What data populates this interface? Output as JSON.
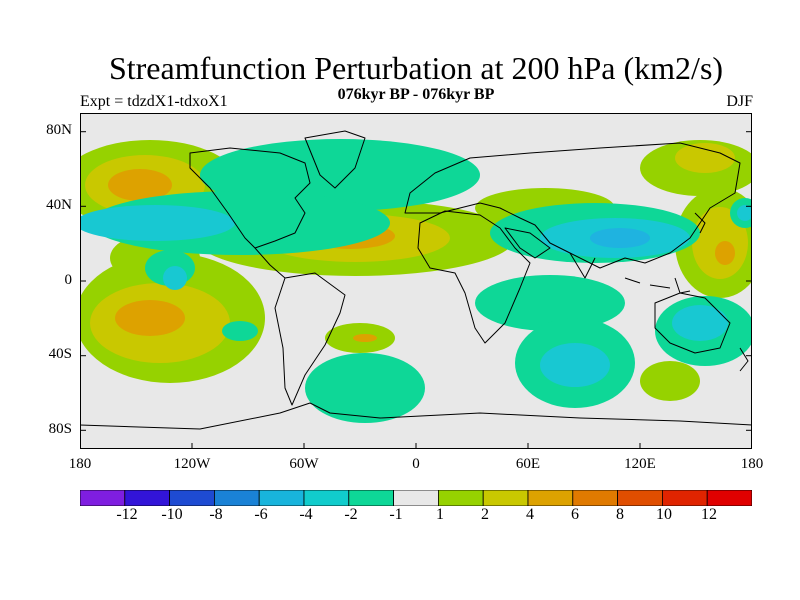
{
  "title": "Streamfunction Perturbation at 200 hPa (km2/s)",
  "subtitle": "076kyr BP - 076kyr BP",
  "left_label": "Expt = tdzdX1-tdxoX1",
  "right_label": "DJF",
  "lat_ticks": [
    "80N",
    "40N",
    "0",
    "40S",
    "80S"
  ],
  "lon_ticks": [
    "180",
    "120W",
    "60W",
    "0",
    "60E",
    "120E",
    "180"
  ],
  "colorbar": {
    "labels": [
      "-12",
      "-10",
      "-8",
      "-6",
      "-4",
      "-2",
      "-1",
      "1",
      "2",
      "4",
      "6",
      "8",
      "10",
      "12"
    ],
    "colors": [
      "#7f1ee0",
      "#3214d8",
      "#1e4bd2",
      "#1a82d6",
      "#18b4dc",
      "#11cccc",
      "#0ed797",
      "#e8e8e8",
      "#96d200",
      "#c9c800",
      "#dda200",
      "#e07a00",
      "#e04e00",
      "#e02400",
      "#e00000"
    ]
  },
  "colors": {
    "land_background": "#e8e8e8",
    "neg_weak": "#0ed797",
    "neg_mid": "#18c8d2",
    "neg_strong": "#1fb3e0",
    "pos_weak": "#96d200",
    "pos_mid": "#c9c800",
    "pos_strong": "#dda200"
  }
}
